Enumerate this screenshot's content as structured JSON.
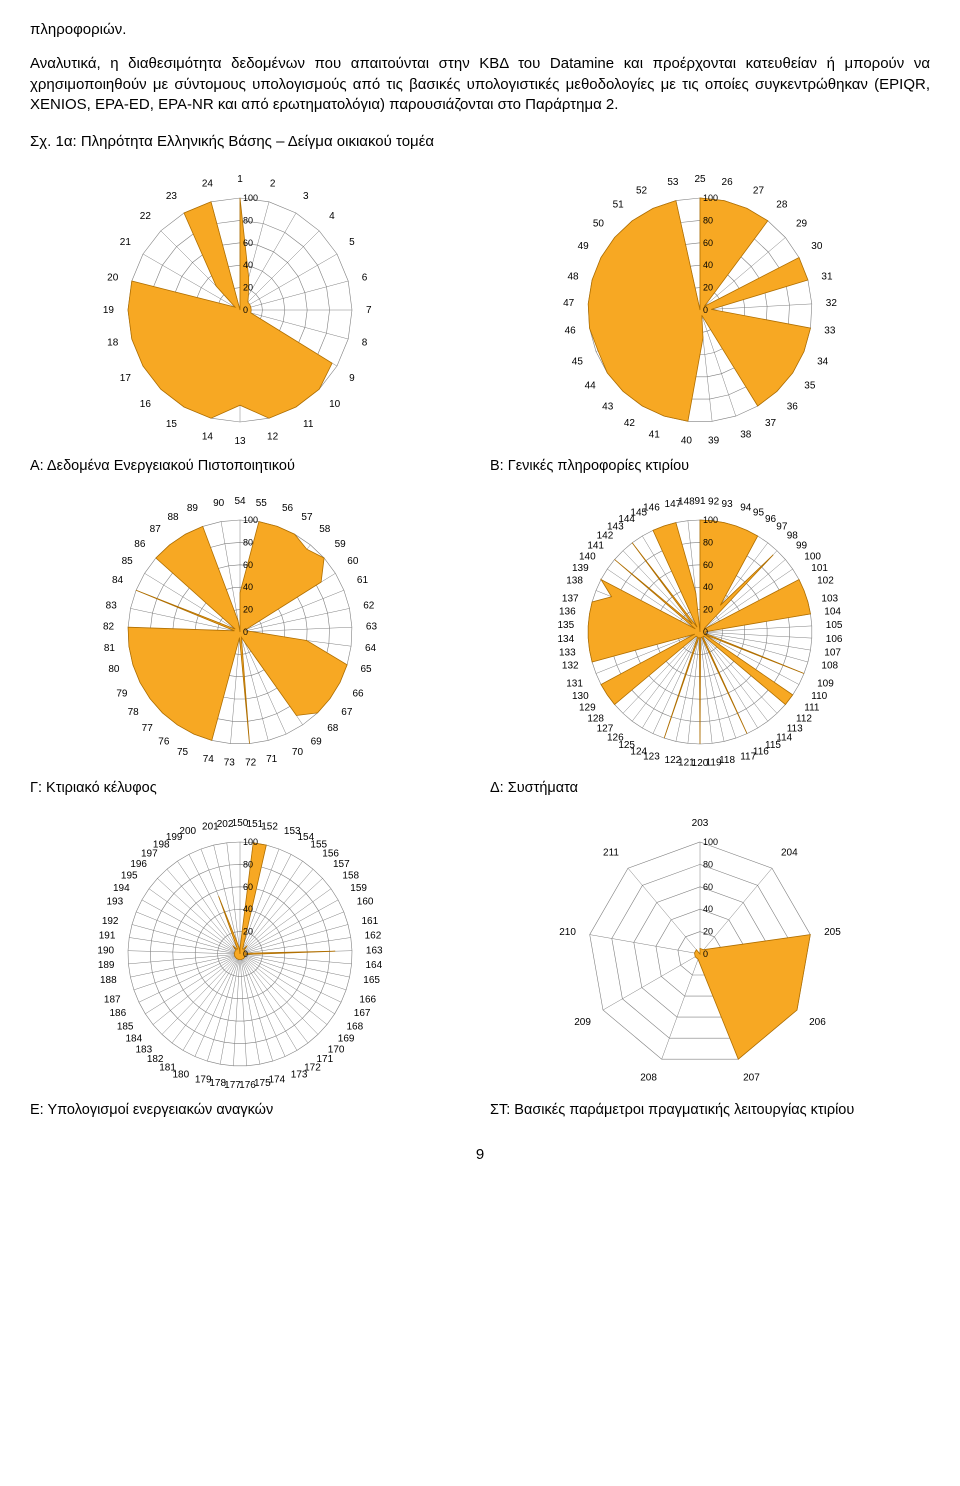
{
  "intro_word": "πληροφοριών.",
  "paragraph": "Αναλυτικά, η διαθεσιμότητα δεδομένων που απαιτούνται στην ΚΒΔ του Datamine και προέρχονται κατευθείαν ή μπορούν να χρησιμοποιηθούν με σύντομους υπολογισμούς από τις βασικές υπολογιστικές μεθοδολογίες με τις οποίες συγκεντρώθηκαν (EPIQR, XENIOS, EPA-ED, EPA-NR και από ερωτηματολόγια) παρουσιάζονται στο Παράρτημα 2.",
  "fig_title": "Σχ. 1α: Πληρότητα Ελληνικής Βάσης – Δείγμα οικιακού τομέα",
  "captions": {
    "A": "Α: Δεδομένα Ενεργειακού Πιστοποιητικού",
    "B": "Β: Γενικές πληροφορίες κτιρίου",
    "C": "Γ: Κτιριακό κέλυφος",
    "D": "Δ: Συστήματα",
    "E": "Ε: Υπολογισμοί ενεργειακών αναγκών",
    "ST": "ΣΤ: Βασικές παράμετροι πραγματικής λειτουργίας κτιρίου"
  },
  "page_num": "9",
  "global_style": {
    "bg": "#ffffff",
    "grid_color": "#808080",
    "axis_color": "#808080",
    "fill_color": "#f7a823",
    "fill_stroke": "#b06f00",
    "label_color": "#000000",
    "label_fontsize": 10,
    "ring_label_fontsize": 9
  },
  "charts": [
    {
      "id": "A",
      "labels_start": 1,
      "labels_end": 24,
      "rings": [
        20,
        40,
        60,
        80,
        100
      ],
      "values": [
        100,
        30,
        15,
        10,
        10,
        10,
        10,
        10,
        95,
        100,
        100,
        100,
        85,
        100,
        100,
        100,
        100,
        100,
        100,
        100,
        5,
        30,
        100,
        100
      ]
    },
    {
      "id": "B",
      "labels_start": 25,
      "labels_end": 53,
      "rings": [
        20,
        40,
        60,
        80,
        100
      ],
      "values": [
        100,
        100,
        100,
        100,
        5,
        100,
        100,
        10,
        100,
        100,
        100,
        100,
        100,
        5,
        25,
        100,
        100,
        100,
        100,
        100,
        98,
        100,
        100,
        100,
        100,
        100,
        100,
        100,
        100
      ]
    },
    {
      "id": "C",
      "labels_start": 54,
      "labels_end": 90,
      "rings": [
        20,
        40,
        60,
        80,
        100
      ],
      "values": [
        35,
        100,
        100,
        100,
        95,
        100,
        85,
        5,
        5,
        10,
        60,
        100,
        100,
        100,
        100,
        90,
        10,
        5,
        100,
        5,
        100,
        100,
        100,
        100,
        100,
        100,
        100,
        100,
        100,
        5,
        100,
        5,
        100,
        100,
        100,
        100,
        10
      ]
    },
    {
      "id": "D",
      "labels_start": 91,
      "labels_end": 148,
      "rings": [
        20,
        40,
        60,
        80,
        100
      ],
      "values": [
        100,
        100,
        100,
        100,
        100,
        100,
        30,
        95,
        5,
        5,
        100,
        100,
        100,
        100,
        5,
        5,
        5,
        5,
        100,
        5,
        100,
        100,
        5,
        5,
        5,
        100,
        5,
        5,
        5,
        100,
        5,
        5,
        100,
        5,
        5,
        5,
        5,
        100,
        100,
        100,
        5,
        100,
        100,
        100,
        100,
        100,
        100,
        85,
        100,
        5,
        100,
        10,
        100,
        5,
        100,
        100,
        100,
        35
      ]
    },
    {
      "id": "E",
      "labels_start": 150,
      "labels_end": 202,
      "rings": [
        20,
        40,
        60,
        80,
        100
      ],
      "values": [
        5,
        100,
        100,
        10,
        5,
        5,
        10,
        5,
        5,
        5,
        5,
        5,
        5,
        85,
        5,
        5,
        5,
        5,
        5,
        5,
        5,
        5,
        5,
        5,
        5,
        5,
        5,
        5,
        5,
        5,
        5,
        5,
        5,
        5,
        5,
        5,
        5,
        5,
        5,
        5,
        5,
        5,
        5,
        5,
        5,
        5,
        5,
        10,
        5,
        5,
        55,
        10,
        5
      ]
    },
    {
      "id": "ST",
      "labels_start": 203,
      "labels_end": 211,
      "rings": [
        20,
        40,
        60,
        80,
        100
      ],
      "values": [
        5,
        5,
        100,
        100,
        100,
        5,
        5,
        5,
        5
      ]
    }
  ]
}
